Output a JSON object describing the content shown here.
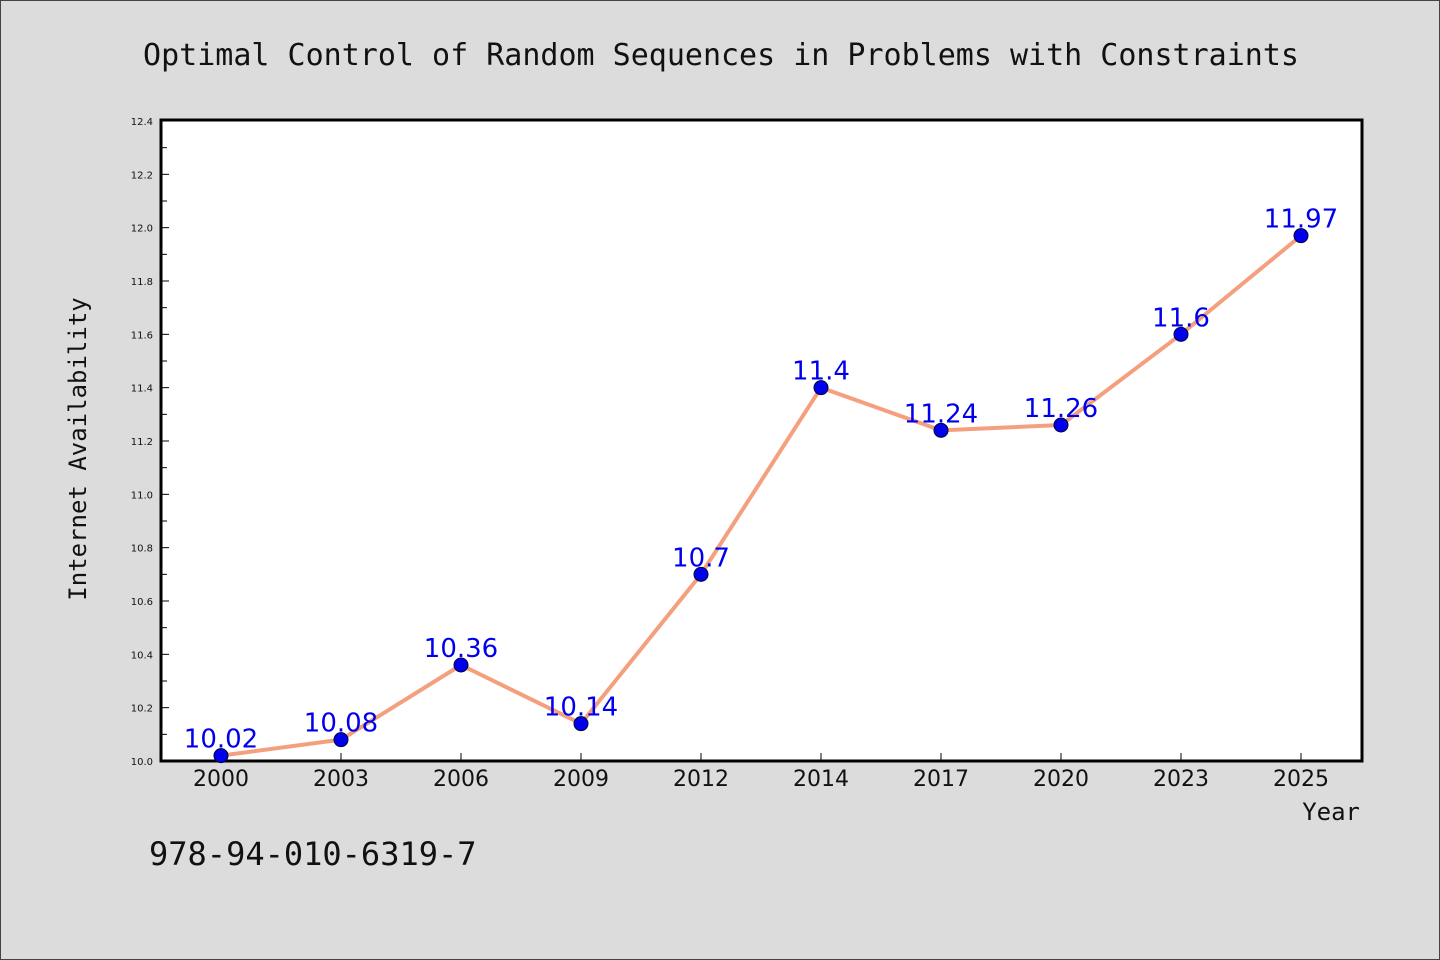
{
  "chart_data": {
    "type": "line",
    "title": "Optimal Control of Random Sequences in Problems with Constraints",
    "xlabel": "Year",
    "ylabel": "Internet Availability",
    "categories": [
      "2000",
      "2003",
      "2006",
      "2009",
      "2012",
      "2014",
      "2017",
      "2020",
      "2023",
      "2025"
    ],
    "series": [
      {
        "values": [
          10.02,
          10.08,
          10.36,
          10.14,
          10.7,
          11.4,
          11.24,
          11.26,
          11.6,
          11.97
        ],
        "data_labels": [
          "10.02",
          "10.08",
          "10.36",
          "10.14",
          "10.7",
          "11.4",
          "11.24",
          "11.26",
          "11.6",
          "11.97"
        ]
      }
    ],
    "ylim": [
      10.0,
      12.4
    ],
    "yticks": [
      "10.0",
      "10.2",
      "10.4",
      "10.6",
      "10.8",
      "11.0",
      "11.2",
      "11.4",
      "11.6",
      "11.8",
      "12.0",
      "12.2",
      "12.4"
    ],
    "grid": false,
    "colors": {
      "line": "#f4a07f",
      "marker": "#0000ee",
      "label": "#0000ee",
      "background": "#dcdcdc",
      "plot_background": "#ffffff"
    }
  },
  "footer": {
    "isbn": "978-94-010-6319-7"
  }
}
